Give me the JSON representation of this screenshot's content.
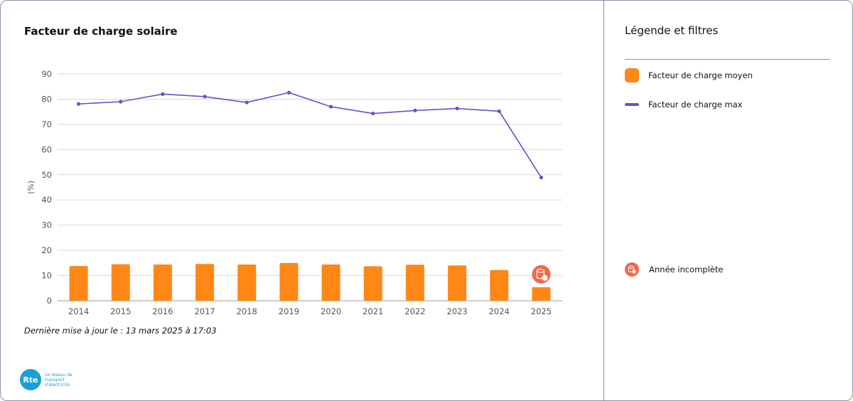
{
  "chart_title": "Facteur de charge solaire",
  "last_update": "Dernière mise à jour le : 13 mars 2025 à 17:03",
  "brand": {
    "logo_text": "Rte",
    "tagline": "Le réseau de transport d'électricité"
  },
  "legend": {
    "title": "Légende et filtres",
    "items": [
      {
        "label": "Facteur de charge moyen",
        "color": "#ff8716",
        "kind": "bar"
      },
      {
        "label": "Facteur de charge max",
        "color": "#6a4fc7",
        "kind": "line"
      }
    ],
    "incomplete_label": "Année incomplète",
    "incomplete_color": "#f06a4a",
    "incomplete_icon": "database-clock-icon"
  },
  "chart_data": {
    "type": "bar",
    "categories": [
      "2014",
      "2015",
      "2016",
      "2017",
      "2018",
      "2019",
      "2020",
      "2021",
      "2022",
      "2023",
      "2024",
      "2025"
    ],
    "series": [
      {
        "name": "Facteur de charge moyen",
        "type": "bar",
        "color": "#ff8716",
        "values": [
          13.8,
          14.5,
          14.4,
          14.6,
          14.4,
          15.0,
          14.4,
          13.7,
          14.3,
          14.0,
          12.2,
          5.4
        ]
      },
      {
        "name": "Facteur de charge max",
        "type": "line",
        "color": "#6a4fc7",
        "values": [
          78.1,
          79.0,
          82.0,
          81.0,
          78.7,
          82.6,
          77.0,
          74.3,
          75.5,
          76.3,
          75.2,
          48.9
        ]
      }
    ],
    "ylabel": "(%)",
    "ylim": [
      0,
      90
    ],
    "yticks": [
      0,
      10,
      20,
      30,
      40,
      50,
      60,
      70,
      80,
      90
    ],
    "grid": true,
    "incomplete_categories": [
      "2025"
    ]
  }
}
